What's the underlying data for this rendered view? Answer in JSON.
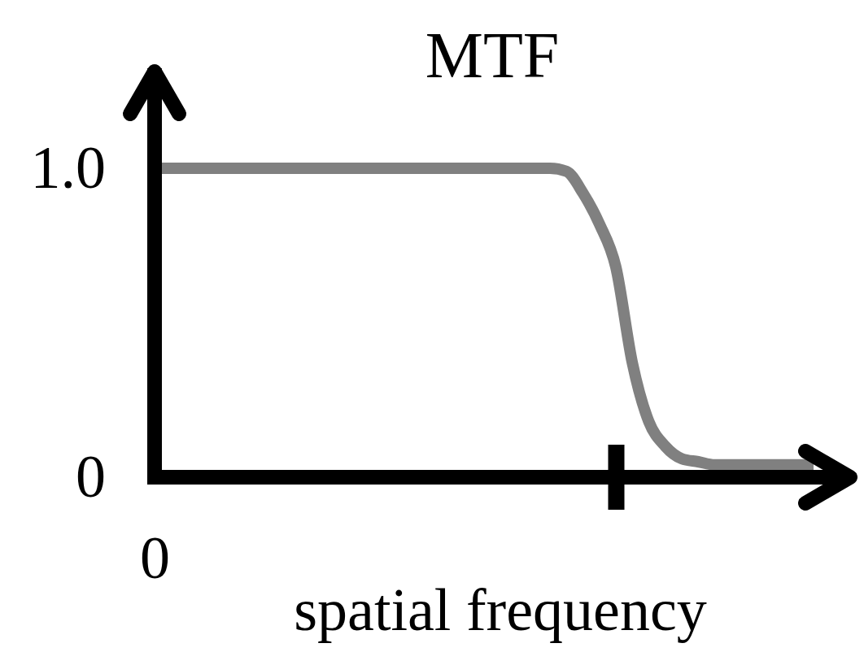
{
  "chart_data": {
    "type": "line",
    "title": "MTF",
    "xlabel": "spatial frequency",
    "categories": [
      "0",
      null,
      null,
      null,
      null,
      null,
      null,
      null,
      null,
      null,
      null,
      null,
      null,
      null,
      null,
      null,
      null,
      null,
      null,
      null,
      null,
      null,
      null,
      null,
      null,
      null,
      null,
      null,
      null,
      null,
      null,
      null,
      null,
      null,
      null,
      null,
      null,
      null,
      null,
      null,
      null
    ],
    "series": [
      {
        "color": "#808080",
        "values": [
          1,
          1,
          1,
          1,
          1,
          1,
          1,
          1,
          1,
          1,
          1,
          1,
          1,
          1,
          1,
          1,
          1,
          1,
          1,
          1,
          1,
          1,
          1,
          1,
          1,
          0.99,
          0.92,
          0.82,
          0.68,
          0.37,
          0.18,
          0.1,
          0.06,
          0.05,
          0.04,
          0.04,
          0.04,
          0.04,
          0.04,
          0.04,
          0.04
        ]
      }
    ],
    "ylim": [
      0,
      1.3
    ],
    "yticks": [
      0,
      {
        "value": 1,
        "label": "1.0"
      }
    ],
    "grid": false,
    "marker": "none",
    "line_style": "solid"
  }
}
